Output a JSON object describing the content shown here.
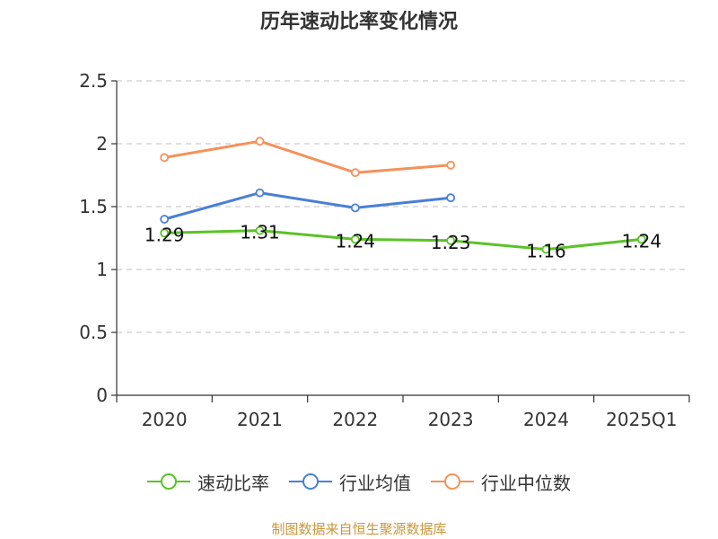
{
  "colors": {
    "速动比率": "#5bc227",
    "行业均值": "#4a7fd6",
    "行业中位数": "#f5915a",
    "axis": "#333333",
    "grid": "#cccccc",
    "source": "#c8963c"
  },
  "chart_data": {
    "type": "line",
    "title": "历年速动比率变化情况",
    "xlabel": "",
    "ylabel": "",
    "categories": [
      "2020",
      "2021",
      "2022",
      "2023",
      "2024",
      "2025Q1"
    ],
    "ylim": [
      0,
      2.5
    ],
    "yticks": [
      "0",
      "0.5",
      "1",
      "1.5",
      "2",
      "2.5"
    ],
    "grid": "horizontal-dashed",
    "legend_position": "bottom",
    "series": [
      {
        "name": "速动比率",
        "values": [
          1.29,
          1.31,
          1.24,
          1.23,
          1.16,
          1.24
        ],
        "data_labels": [
          "1.29",
          "1.31",
          "1.24",
          "1.23",
          "1.16",
          "1.24"
        ]
      },
      {
        "name": "行业均值",
        "values": [
          1.4,
          1.61,
          1.49,
          1.57,
          null,
          null
        ]
      },
      {
        "name": "行业中位数",
        "values": [
          1.89,
          2.02,
          1.77,
          1.83,
          null,
          null
        ]
      }
    ]
  },
  "legend": [
    "速动比率",
    "行业均值",
    "行业中位数"
  ],
  "source_text": "制图数据来自恒生聚源数据库"
}
